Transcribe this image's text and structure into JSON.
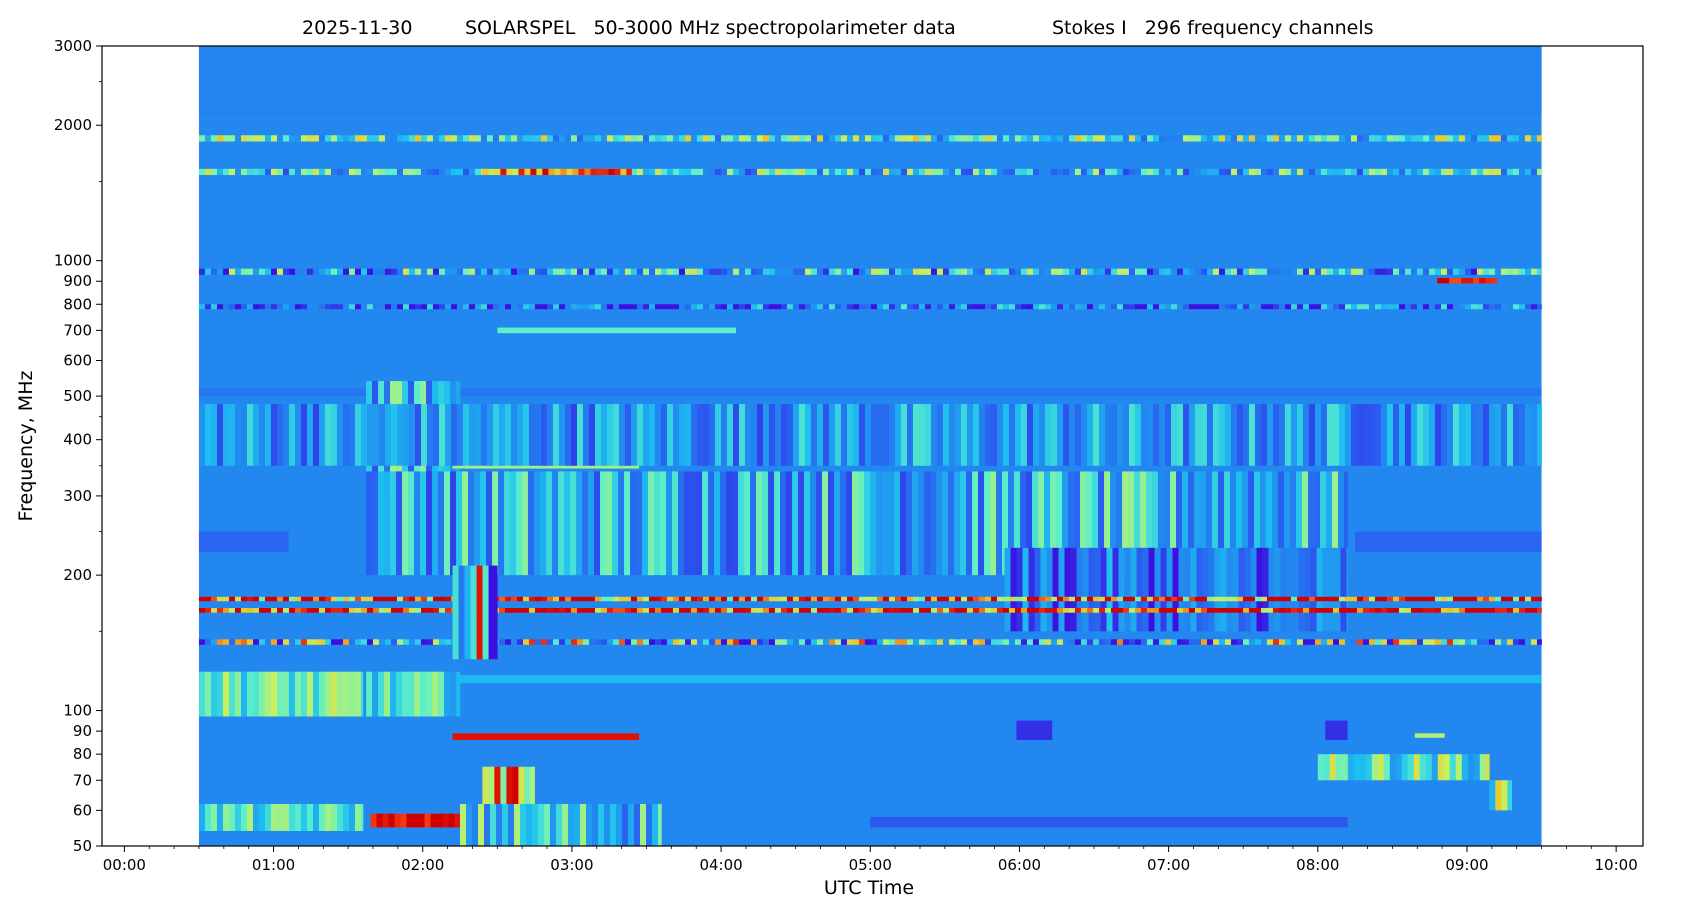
{
  "chart_data": {
    "type": "heatmap",
    "title": {
      "date": "2025-11-30",
      "instrument": "SOLARSPEL   50-3000 MHz spectropolarimeter data",
      "stokes": "Stokes I   296 frequency channels"
    },
    "xlabel": "UTC Time",
    "ylabel": "Frequency, MHz",
    "xlim_hours": [
      -0.15,
      10.18
    ],
    "ylim_mhz": [
      50,
      3000
    ],
    "yscale": "log",
    "data_range_hours": [
      0.5,
      9.5
    ],
    "x_ticks": [
      {
        "value": 0,
        "label": "00:00"
      },
      {
        "value": 1,
        "label": "01:00"
      },
      {
        "value": 2,
        "label": "02:00"
      },
      {
        "value": 3,
        "label": "03:00"
      },
      {
        "value": 4,
        "label": "04:00"
      },
      {
        "value": 5,
        "label": "05:00"
      },
      {
        "value": 6,
        "label": "06:00"
      },
      {
        "value": 7,
        "label": "07:00"
      },
      {
        "value": 8,
        "label": "08:00"
      },
      {
        "value": 9,
        "label": "09:00"
      },
      {
        "value": 10,
        "label": "10:00"
      }
    ],
    "y_ticks": [
      {
        "value": 50,
        "label": "50"
      },
      {
        "value": 60,
        "label": "60"
      },
      {
        "value": 70,
        "label": "70"
      },
      {
        "value": 80,
        "label": "80"
      },
      {
        "value": 90,
        "label": "90"
      },
      {
        "value": 100,
        "label": "100"
      },
      {
        "value": 200,
        "label": "200"
      },
      {
        "value": 300,
        "label": "300"
      },
      {
        "value": 400,
        "label": "400"
      },
      {
        "value": 500,
        "label": "500"
      },
      {
        "value": 600,
        "label": "600"
      },
      {
        "value": 700,
        "label": "700"
      },
      {
        "value": 800,
        "label": "800"
      },
      {
        "value": 900,
        "label": "900"
      },
      {
        "value": 1000,
        "label": "1000"
      },
      {
        "value": 2000,
        "label": "2000"
      },
      {
        "value": 3000,
        "label": "3000"
      }
    ],
    "y_minor_ticks": [
      150,
      250,
      350,
      450,
      1500,
      2500
    ],
    "colormap": [
      "#3b10e0",
      "#2a5cf0",
      "#2288f0",
      "#1ec0f0",
      "#5ef0c8",
      "#c8f060",
      "#f0c020",
      "#f03010",
      "#d00000"
    ],
    "background_level": 0.25,
    "bands": [
      {
        "f1": 2100,
        "f2": 3000,
        "t1": 0.5,
        "t2": 9.5,
        "level": 0.24
      },
      {
        "f1": 1840,
        "f2": 1900,
        "t1": 0.5,
        "t2": 9.5,
        "level": 0.45,
        "noise": 0.3
      },
      {
        "f1": 1550,
        "f2": 1600,
        "t1": 0.5,
        "t2": 9.5,
        "level": 0.38,
        "noise": 0.3
      },
      {
        "f1": 1550,
        "f2": 1600,
        "t1": 2.4,
        "t2": 3.4,
        "level": 0.82,
        "noise": 0.2
      },
      {
        "f1": 930,
        "f2": 960,
        "t1": 0.5,
        "t2": 9.5,
        "level": 0.32,
        "noise": 0.35
      },
      {
        "f1": 890,
        "f2": 915,
        "t1": 8.8,
        "t2": 9.2,
        "level": 0.95,
        "noise": 0.1
      },
      {
        "f1": 780,
        "f2": 800,
        "t1": 0.5,
        "t2": 9.5,
        "level": 0.2,
        "noise": 0.3
      },
      {
        "f1": 690,
        "f2": 710,
        "t1": 2.5,
        "t2": 4.1,
        "level": 0.5
      },
      {
        "f1": 500,
        "f2": 520,
        "t1": 0.5,
        "t2": 9.5,
        "level": 0.2
      },
      {
        "f1": 300,
        "f2": 540,
        "t1": 1.62,
        "t2": 2.25,
        "level": 0.34,
        "noise": 0.25
      },
      {
        "f1": 400,
        "f2": 420,
        "t1": 1.62,
        "t2": 2.0,
        "level": 0.6,
        "noise": 0.35
      },
      {
        "f1": 345,
        "f2": 352,
        "t1": 2.2,
        "t2": 3.45,
        "level": 0.58
      },
      {
        "f1": 350,
        "f2": 480,
        "t1": 0.5,
        "t2": 9.5,
        "level": 0.28,
        "noise": 0.2
      },
      {
        "f1": 200,
        "f2": 340,
        "t1": 1.62,
        "t2": 8.2,
        "level": 0.33,
        "noise": 0.25
      },
      {
        "f1": 225,
        "f2": 250,
        "t1": 0.5,
        "t2": 1.1,
        "level": 0.15
      },
      {
        "f1": 225,
        "f2": 250,
        "t1": 8.25,
        "t2": 9.5,
        "level": 0.15
      },
      {
        "f1": 150,
        "f2": 230,
        "t1": 5.9,
        "t2": 8.2,
        "level": 0.18,
        "noise": 0.2
      },
      {
        "f1": 175,
        "f2": 179,
        "t1": 0.5,
        "t2": 9.5,
        "level": 0.9,
        "noise": 0.4
      },
      {
        "f1": 165,
        "f2": 169,
        "t1": 0.5,
        "t2": 9.5,
        "level": 0.93,
        "noise": 0.35
      },
      {
        "f1": 140,
        "f2": 144,
        "t1": 0.5,
        "t2": 9.5,
        "level": 0.4,
        "noise": 0.5
      },
      {
        "f1": 130,
        "f2": 210,
        "t1": 2.2,
        "t2": 2.5,
        "level": 0.45,
        "noise": 0.5
      },
      {
        "f1": 97,
        "f2": 122,
        "t1": 0.5,
        "t2": 1.6,
        "level": 0.5,
        "noise": 0.15
      },
      {
        "f1": 97,
        "f2": 122,
        "t1": 1.62,
        "t2": 2.25,
        "level": 0.44,
        "noise": 0.15
      },
      {
        "f1": 115,
        "f2": 120,
        "t1": 2.25,
        "t2": 9.5,
        "level": 0.36
      },
      {
        "f1": 86,
        "f2": 89,
        "t1": 2.2,
        "t2": 3.45,
        "level": 0.95
      },
      {
        "f1": 86,
        "f2": 95,
        "t1": 5.98,
        "t2": 6.22,
        "level": 0.05
      },
      {
        "f1": 86,
        "f2": 95,
        "t1": 8.05,
        "t2": 8.2,
        "level": 0.05
      },
      {
        "f1": 87,
        "f2": 89,
        "t1": 8.65,
        "t2": 8.85,
        "level": 0.6
      },
      {
        "f1": 70,
        "f2": 80,
        "t1": 8.0,
        "t2": 9.15,
        "level": 0.48,
        "noise": 0.2
      },
      {
        "f1": 60,
        "f2": 70,
        "t1": 9.15,
        "t2": 9.3,
        "level": 0.6,
        "noise": 0.3
      },
      {
        "f1": 62,
        "f2": 75,
        "t1": 2.4,
        "t2": 2.75,
        "level": 0.75,
        "noise": 0.3
      },
      {
        "f1": 54,
        "f2": 62,
        "t1": 0.5,
        "t2": 1.6,
        "level": 0.45,
        "noise": 0.15
      },
      {
        "f1": 55,
        "f2": 59,
        "t1": 1.65,
        "t2": 2.25,
        "level": 0.96,
        "noise": 0.1
      },
      {
        "f1": 50,
        "f2": 62,
        "t1": 2.25,
        "t2": 3.6,
        "level": 0.38,
        "noise": 0.25
      },
      {
        "f1": 55,
        "f2": 58,
        "t1": 5.0,
        "t2": 8.2,
        "level": 0.12
      }
    ]
  }
}
